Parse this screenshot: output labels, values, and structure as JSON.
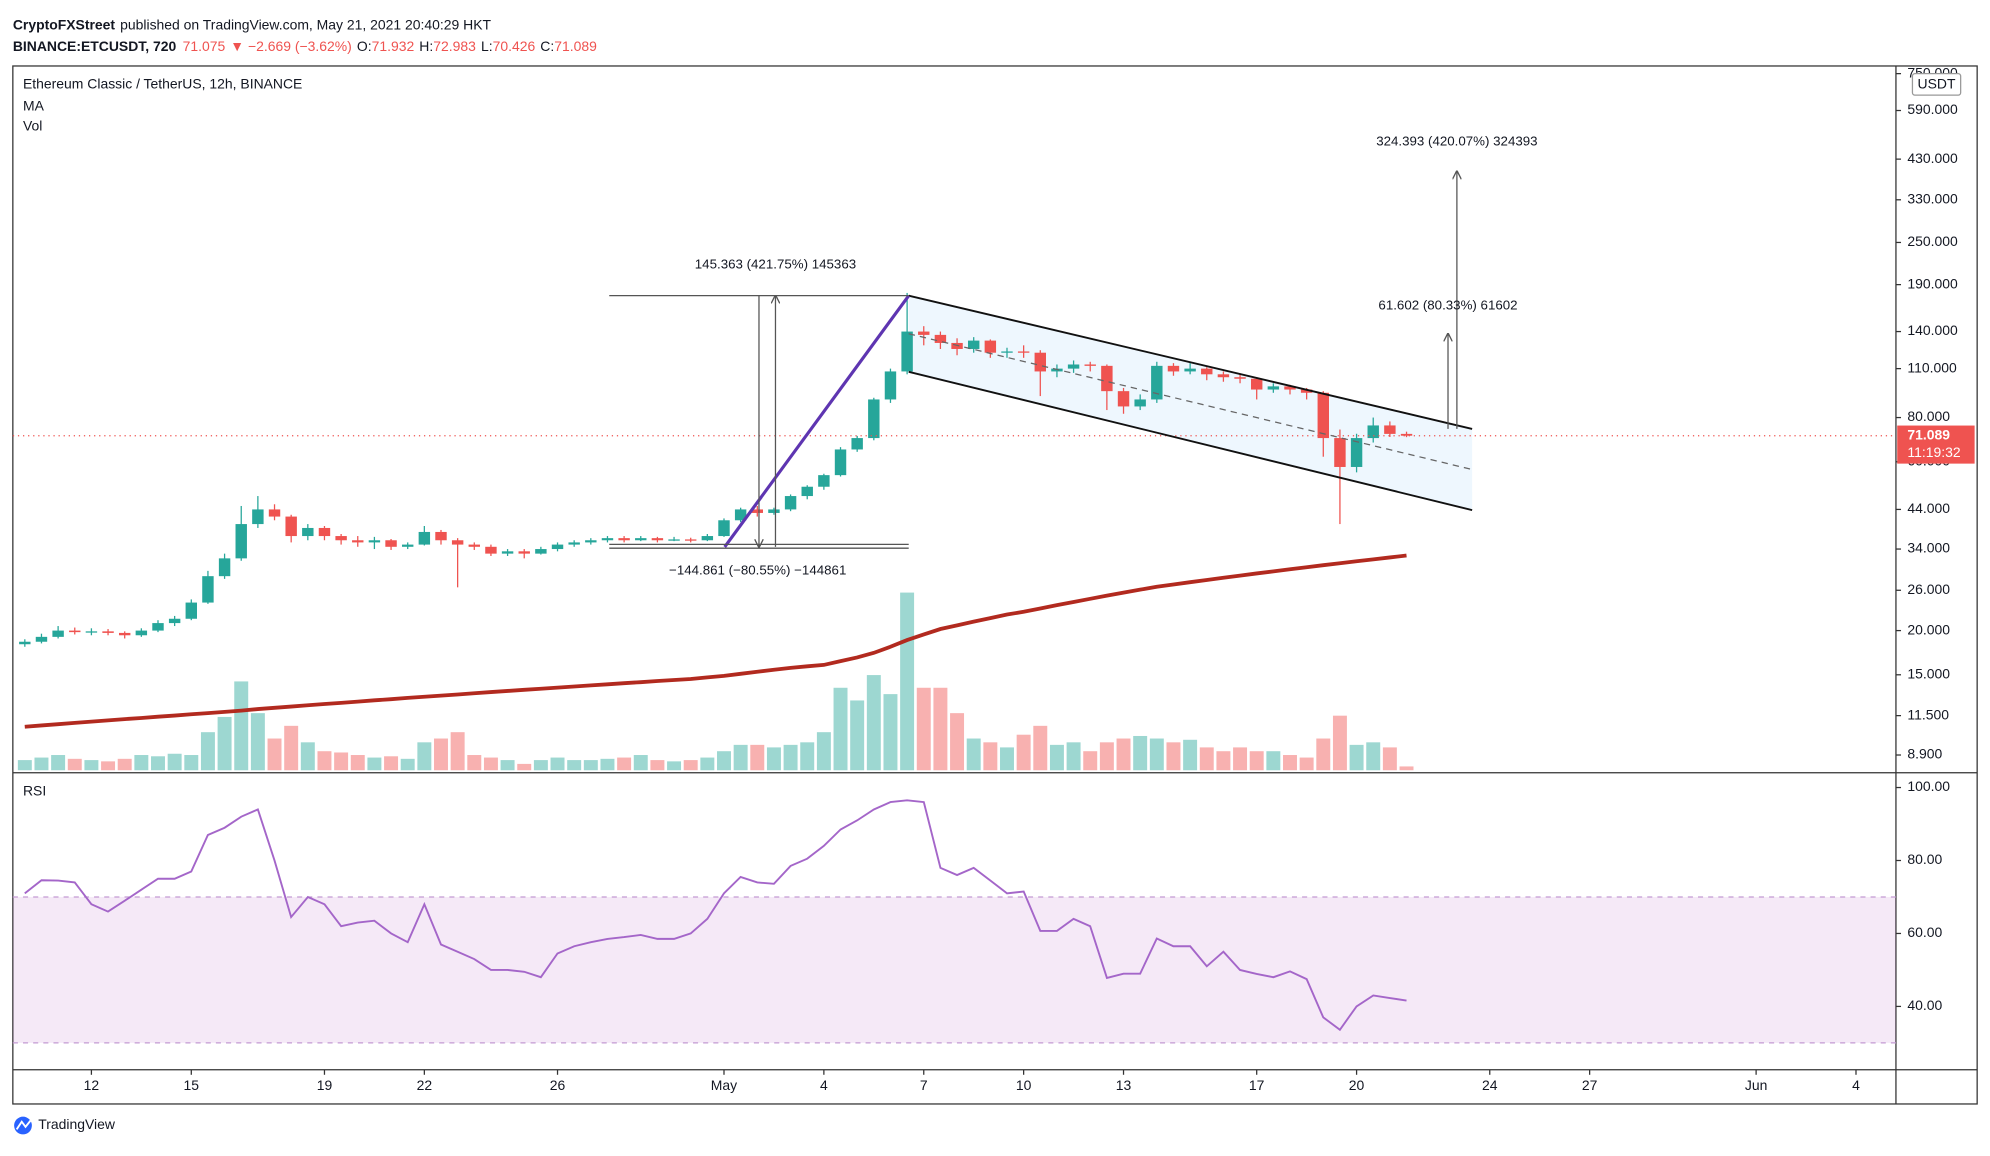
{
  "header": {
    "author": "CryptoFXStreet",
    "published": "published on TradingView.com, May 21, 2021 20:40:29 HKT",
    "symbol": "BINANCE:ETCUSDT, 720",
    "last": "71.075",
    "change": "▼ −2.669 (−3.62%)",
    "ohlc": [
      {
        "key": "O:",
        "value": "71.932"
      },
      {
        "key": "H:",
        "value": "72.983"
      },
      {
        "key": "L:",
        "value": "70.426"
      },
      {
        "key": "C:",
        "value": "71.089"
      }
    ]
  },
  "legend": {
    "instrument": "Ethereum Classic / TetherUS, 12h, BINANCE",
    "ma": "MA",
    "vol": "Vol",
    "rsi": "RSI"
  },
  "currency": "USDT",
  "countdown": "11:19:32",
  "brand": "TradingView",
  "annotations": [
    "145.363 (421.75%) 145363",
    "−144.861 (−80.55%) −144861",
    "61.602 (80.33%) 61602",
    "324.393 (420.07%) 324393"
  ],
  "chart_data": {
    "type": "candlestick",
    "log_scale": true,
    "up_color": "#26a69a",
    "down_color": "#ef5350",
    "ma_color": "#b22a1f",
    "rsi_color": "#a466c9",
    "last_price": 71.089,
    "xlim": [
      "2021-04-09T15:22",
      "2021-06-05T04:48"
    ],
    "xticks": [
      {
        "value": "2021-04-12T00:00",
        "label": "12"
      },
      {
        "value": "2021-04-15T00:00",
        "label": "15"
      },
      {
        "value": "2021-04-19T00:00",
        "label": "19"
      },
      {
        "value": "2021-04-22T00:00",
        "label": "22"
      },
      {
        "value": "2021-04-26T00:00",
        "label": "26"
      },
      {
        "value": "2021-05-01T00:00",
        "label": "May"
      },
      {
        "value": "2021-05-04T00:00",
        "label": "4"
      },
      {
        "value": "2021-05-07T00:00",
        "label": "7"
      },
      {
        "value": "2021-05-10T00:00",
        "label": "10"
      },
      {
        "value": "2021-05-13T00:00",
        "label": "13"
      },
      {
        "value": "2021-05-17T00:00",
        "label": "17"
      },
      {
        "value": "2021-05-20T00:00",
        "label": "20"
      },
      {
        "value": "2021-05-24T00:00",
        "label": "24"
      },
      {
        "value": "2021-05-27T00:00",
        "label": "27"
      },
      {
        "value": "2021-06-01T00:00",
        "label": "Jun"
      },
      {
        "value": "2021-06-04T00:00",
        "label": "4"
      }
    ],
    "ylim": [
      8.06,
      769
    ],
    "yticks": [
      {
        "value": 8.9,
        "label": "8.900"
      },
      {
        "value": 11.5,
        "label": "11.500"
      },
      {
        "value": 15,
        "label": "15.000"
      },
      {
        "value": 20,
        "label": "20.000"
      },
      {
        "value": 26,
        "label": "26.000"
      },
      {
        "value": 34,
        "label": "34.000"
      },
      {
        "value": 44,
        "label": "44.000"
      },
      {
        "value": 60,
        "label": "60.000"
      },
      {
        "value": 80,
        "label": "80.000"
      },
      {
        "value": 110,
        "label": "110.000"
      },
      {
        "value": 140,
        "label": "140.000"
      },
      {
        "value": 190,
        "label": "190.000"
      },
      {
        "value": 250,
        "label": "250.000"
      },
      {
        "value": 330,
        "label": "330.000"
      },
      {
        "value": 430,
        "label": "430.000"
      },
      {
        "value": 590,
        "label": "590.000"
      },
      {
        "value": 750,
        "label": "750.000"
      }
    ],
    "x": [
      "2021-04-10T00:00",
      "2021-04-10T12:00",
      "2021-04-11T00:00",
      "2021-04-11T12:00",
      "2021-04-12T00:00",
      "2021-04-12T12:00",
      "2021-04-13T00:00",
      "2021-04-13T12:00",
      "2021-04-14T00:00",
      "2021-04-14T12:00",
      "2021-04-15T00:00",
      "2021-04-15T12:00",
      "2021-04-16T00:00",
      "2021-04-16T12:00",
      "2021-04-17T00:00",
      "2021-04-17T12:00",
      "2021-04-18T00:00",
      "2021-04-18T12:00",
      "2021-04-19T00:00",
      "2021-04-19T12:00",
      "2021-04-20T00:00",
      "2021-04-20T12:00",
      "2021-04-21T00:00",
      "2021-04-21T12:00",
      "2021-04-22T00:00",
      "2021-04-22T12:00",
      "2021-04-23T00:00",
      "2021-04-23T12:00",
      "2021-04-24T00:00",
      "2021-04-24T12:00",
      "2021-04-25T00:00",
      "2021-04-25T12:00",
      "2021-04-26T00:00",
      "2021-04-26T12:00",
      "2021-04-27T00:00",
      "2021-04-27T12:00",
      "2021-04-28T00:00",
      "2021-04-28T12:00",
      "2021-04-29T00:00",
      "2021-04-29T12:00",
      "2021-04-30T00:00",
      "2021-04-30T12:00",
      "2021-05-01T00:00",
      "2021-05-01T12:00",
      "2021-05-02T00:00",
      "2021-05-02T12:00",
      "2021-05-03T00:00",
      "2021-05-03T12:00",
      "2021-05-04T00:00",
      "2021-05-04T12:00",
      "2021-05-05T00:00",
      "2021-05-05T12:00",
      "2021-05-06T00:00",
      "2021-05-06T12:00",
      "2021-05-07T00:00",
      "2021-05-07T12:00",
      "2021-05-08T00:00",
      "2021-05-08T12:00",
      "2021-05-09T00:00",
      "2021-05-09T12:00",
      "2021-05-10T00:00",
      "2021-05-10T12:00",
      "2021-05-11T00:00",
      "2021-05-11T12:00",
      "2021-05-12T00:00",
      "2021-05-12T12:00",
      "2021-05-13T00:00",
      "2021-05-13T12:00",
      "2021-05-14T00:00",
      "2021-05-14T12:00",
      "2021-05-15T00:00",
      "2021-05-15T12:00",
      "2021-05-16T00:00",
      "2021-05-16T12:00",
      "2021-05-17T00:00",
      "2021-05-17T12:00",
      "2021-05-18T00:00",
      "2021-05-18T12:00",
      "2021-05-19T00:00",
      "2021-05-19T12:00",
      "2021-05-20T00:00",
      "2021-05-20T12:00",
      "2021-05-21T00:00",
      "2021-05-21T12:00"
    ],
    "candles": [
      [
        18.3,
        18.9,
        18.0,
        18.6
      ],
      [
        18.6,
        19.6,
        18.4,
        19.2
      ],
      [
        19.2,
        20.6,
        19.0,
        20.0
      ],
      [
        20.0,
        20.4,
        19.5,
        19.8
      ],
      [
        19.8,
        20.3,
        19.4,
        19.9
      ],
      [
        19.9,
        20.2,
        19.4,
        19.7
      ],
      [
        19.7,
        19.9,
        19.0,
        19.4
      ],
      [
        19.4,
        20.3,
        19.2,
        20.0
      ],
      [
        20.0,
        21.4,
        19.8,
        21.0
      ],
      [
        21.0,
        22.0,
        20.6,
        21.6
      ],
      [
        21.6,
        24.5,
        21.4,
        24.0
      ],
      [
        24.0,
        29.5,
        23.8,
        28.5
      ],
      [
        28.5,
        33.0,
        28.0,
        32.0
      ],
      [
        32.0,
        45.0,
        31.5,
        40.0
      ],
      [
        40.0,
        48.0,
        39.0,
        44.0
      ],
      [
        44.0,
        45.5,
        41.0,
        42.0
      ],
      [
        42.0,
        42.5,
        35.5,
        37.0
      ],
      [
        37.0,
        40.0,
        36.0,
        39.0
      ],
      [
        39.0,
        39.5,
        36.0,
        37.0
      ],
      [
        37.0,
        37.5,
        35.0,
        36.0
      ],
      [
        36.0,
        37.0,
        34.5,
        35.5
      ],
      [
        35.5,
        36.8,
        34.0,
        36.0
      ],
      [
        36.0,
        36.3,
        33.8,
        34.5
      ],
      [
        34.5,
        35.5,
        34.0,
        35.0
      ],
      [
        35.0,
        39.5,
        34.8,
        38.0
      ],
      [
        38.0,
        38.5,
        35.0,
        36.0
      ],
      [
        36.0,
        36.5,
        26.5,
        35.0
      ],
      [
        35.0,
        35.5,
        33.8,
        34.5
      ],
      [
        34.5,
        35.0,
        32.5,
        33.0
      ],
      [
        33.0,
        34.0,
        32.5,
        33.5
      ],
      [
        33.5,
        34.0,
        32.0,
        33.0
      ],
      [
        33.0,
        34.5,
        32.8,
        34.0
      ],
      [
        34.0,
        35.5,
        33.5,
        35.0
      ],
      [
        35.0,
        36.0,
        34.5,
        35.5
      ],
      [
        35.5,
        36.5,
        35.0,
        36.0
      ],
      [
        36.0,
        37.0,
        35.5,
        36.5
      ],
      [
        36.5,
        37.0,
        35.5,
        36.0
      ],
      [
        36.0,
        37.0,
        35.8,
        36.5
      ],
      [
        36.5,
        36.8,
        35.5,
        36.0
      ],
      [
        36.0,
        36.8,
        35.8,
        36.2
      ],
      [
        36.2,
        36.6,
        35.5,
        36.0
      ],
      [
        36.0,
        37.5,
        35.8,
        37.0
      ],
      [
        37.0,
        41.5,
        36.8,
        41.0
      ],
      [
        41.0,
        44.5,
        40.5,
        44.0
      ],
      [
        44.0,
        45.0,
        42.0,
        43.0
      ],
      [
        43.0,
        44.5,
        42.5,
        44.0
      ],
      [
        44.0,
        48.5,
        43.5,
        48.0
      ],
      [
        48.0,
        51.5,
        47.0,
        51.0
      ],
      [
        51.0,
        55.5,
        50.0,
        55.0
      ],
      [
        55.0,
        66.0,
        54.5,
        65.0
      ],
      [
        65.0,
        71.0,
        64.0,
        70.0
      ],
      [
        70.0,
        91.0,
        69.0,
        90.0
      ],
      [
        90.0,
        110.0,
        88.0,
        108.0
      ],
      [
        108.0,
        180.0,
        106.0,
        140.0
      ],
      [
        140.0,
        145.0,
        128.0,
        137.0
      ],
      [
        137.0,
        140.0,
        125.0,
        130.0
      ],
      [
        130.0,
        134.0,
        120.0,
        125.0
      ],
      [
        125.0,
        135.0,
        122.0,
        132.0
      ],
      [
        132.0,
        133.0,
        118.0,
        122.0
      ],
      [
        122.0,
        126.0,
        118.0,
        123.0
      ],
      [
        123.0,
        128.0,
        118.0,
        122.0
      ],
      [
        122.0,
        124.0,
        92.0,
        108.0
      ],
      [
        108.0,
        113.0,
        104.0,
        110.0
      ],
      [
        110.0,
        116.0,
        107.0,
        113.0
      ],
      [
        113.0,
        115.0,
        108.0,
        112.0
      ],
      [
        112.0,
        113.0,
        84.0,
        95.0
      ],
      [
        95.0,
        97.0,
        82.0,
        86.0
      ],
      [
        86.0,
        93.0,
        84.0,
        90.0
      ],
      [
        90.0,
        115.0,
        88.0,
        112.0
      ],
      [
        112.0,
        114.0,
        105.0,
        108.0
      ],
      [
        108.0,
        114.0,
        106.0,
        110.0
      ],
      [
        110.0,
        111.0,
        102.0,
        106.0
      ],
      [
        106.0,
        108.0,
        101.0,
        104.0
      ],
      [
        104.0,
        106.0,
        100.0,
        103.0
      ],
      [
        103.0,
        104.0,
        90.0,
        96.0
      ],
      [
        96.0,
        100.0,
        94.0,
        98.0
      ],
      [
        98.0,
        99.0,
        93.0,
        96.0
      ],
      [
        96.0,
        97.0,
        90.0,
        94.0
      ],
      [
        94.0,
        95.0,
        62.0,
        70.0
      ],
      [
        70.0,
        74.0,
        40.0,
        58.0
      ],
      [
        58.0,
        72.0,
        56.0,
        70.0
      ],
      [
        70.0,
        80.0,
        68.0,
        76.0
      ],
      [
        76.0,
        78.0,
        70.5,
        71.932
      ],
      [
        71.932,
        72.983,
        70.426,
        71.089
      ]
    ],
    "volume_lim": [
      0,
      552
    ],
    "volume": [
      8,
      10,
      12,
      9,
      8,
      7,
      9,
      12,
      11,
      13,
      12,
      30,
      42,
      70,
      45,
      25,
      35,
      22,
      15,
      14,
      12,
      10,
      11,
      9,
      22,
      25,
      30,
      12,
      10,
      8,
      5,
      8,
      10,
      8,
      8,
      9,
      10,
      12,
      8,
      7,
      8,
      10,
      15,
      20,
      20,
      18,
      20,
      22,
      30,
      65,
      55,
      75,
      60,
      140,
      65,
      65,
      45,
      25,
      22,
      18,
      28,
      35,
      20,
      22,
      15,
      22,
      25,
      27,
      25,
      22,
      24,
      18,
      15,
      18,
      15,
      15,
      12,
      10,
      25,
      43,
      20,
      22,
      18,
      3
    ],
    "ma": [
      10.7,
      10.79,
      10.88,
      10.97,
      11.06,
      11.15,
      11.24,
      11.33,
      11.42,
      11.51,
      11.6,
      11.69,
      11.78,
      11.88,
      12.0,
      12.1,
      12.2,
      12.3,
      12.4,
      12.5,
      12.6,
      12.7,
      12.8,
      12.9,
      13.0,
      13.1,
      13.2,
      13.3,
      13.4,
      13.5,
      13.6,
      13.7,
      13.8,
      13.9,
      14.0,
      14.1,
      14.2,
      14.3,
      14.4,
      14.5,
      14.6,
      14.75,
      14.9,
      15.1,
      15.3,
      15.5,
      15.7,
      15.85,
      16.0,
      16.4,
      16.8,
      17.3,
      18.0,
      18.8,
      19.5,
      20.2,
      20.7,
      21.2,
      21.7,
      22.2,
      22.6,
      23.1,
      23.6,
      24.1,
      24.6,
      25.1,
      25.6,
      26.1,
      26.6,
      27.0,
      27.4,
      27.8,
      28.2,
      28.6,
      29.0,
      29.4,
      29.8,
      30.2,
      30.6,
      31.0,
      31.4,
      31.8,
      32.2,
      32.6
    ],
    "rsi": [
      71,
      74.6,
      74.5,
      74,
      68,
      66,
      69,
      72,
      75,
      75,
      77,
      87,
      89,
      92,
      94,
      80,
      64.5,
      70,
      68,
      62,
      63,
      63.5,
      60,
      57.6,
      68,
      57,
      55,
      53,
      50,
      50,
      49.5,
      48,
      54.5,
      56.5,
      57.6,
      58.5,
      59,
      59.6,
      58.5,
      58.5,
      60,
      64,
      71,
      75.5,
      74,
      73.6,
      78.5,
      80.5,
      84,
      88.5,
      91,
      94,
      96,
      96.5,
      96,
      78,
      76,
      78,
      74.5,
      71,
      71.5,
      60.7,
      60.7,
      64,
      62,
      47.8,
      49,
      49,
      58.6,
      56.5,
      56.5,
      51,
      55,
      50,
      48.9,
      48,
      49.6,
      47.5,
      37,
      33.6,
      40,
      43,
      42.3,
      41.6
    ],
    "rsi_lim": [
      23,
      103
    ],
    "rsi_band": [
      30,
      70
    ],
    "rsi_ticks": [
      {
        "value": 40,
        "label": "40.00"
      },
      {
        "value": 60,
        "label": "60.00"
      },
      {
        "value": 80,
        "label": "80.00"
      },
      {
        "value": 100,
        "label": "100.00"
      }
    ]
  }
}
